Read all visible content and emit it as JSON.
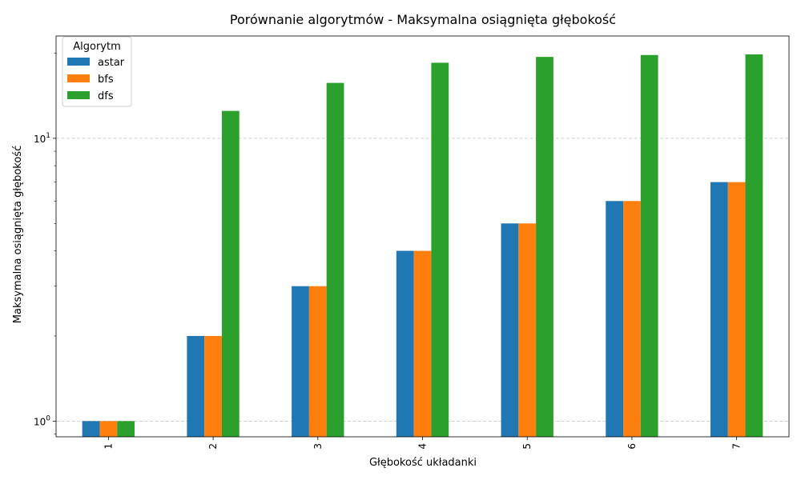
{
  "chart_data": {
    "type": "bar",
    "title": "Porównanie algorytmów - Maksymalna osiągnięta głębokość",
    "xlabel": "Głębokość układanki",
    "ylabel": "Maksymalna osiągnięta głębokość",
    "yscale": "log",
    "ylim": [
      0.88,
      23
    ],
    "grid": "y-dashed",
    "legend": {
      "title": "Algorytm",
      "placement": "top-left"
    },
    "categories": [
      "1",
      "2",
      "3",
      "4",
      "5",
      "6",
      "7"
    ],
    "series": [
      {
        "name": "astar",
        "color": "#1f77b4",
        "values": [
          1,
          2,
          3,
          4,
          5,
          6,
          7
        ]
      },
      {
        "name": "bfs",
        "color": "#ff7f0e",
        "values": [
          1,
          2,
          3,
          4,
          5,
          6,
          7
        ]
      },
      {
        "name": "dfs",
        "color": "#2ca02c",
        "values": [
          1,
          12.5,
          15.7,
          18.5,
          19.4,
          19.7,
          19.8
        ]
      }
    ],
    "y_ticks": [
      {
        "value": 1,
        "base": "10",
        "exp": "0"
      },
      {
        "value": 10,
        "base": "10",
        "exp": "1"
      }
    ]
  }
}
